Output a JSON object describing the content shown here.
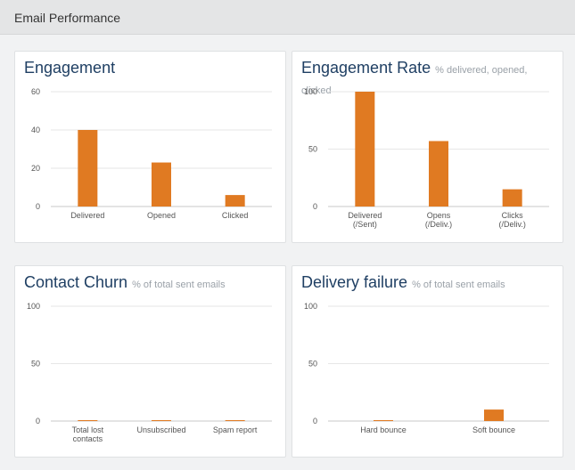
{
  "header": {
    "title": "Email Performance"
  },
  "colors": {
    "bar": "#e07a22",
    "grid": "#e6e6e6",
    "axis": "#c8c8c8",
    "text": "#555555",
    "title": "#1f3f63",
    "subtitle": "#9aa1a8"
  },
  "chart_data": [
    {
      "type": "bar",
      "title": "Engagement",
      "subtitle": "",
      "categories": [
        [
          "Delivered"
        ],
        [
          "Opened"
        ],
        [
          "Clicked"
        ]
      ],
      "values": [
        40,
        23,
        6
      ],
      "ylim": [
        0,
        60
      ],
      "yticks": [
        0,
        20,
        40,
        60
      ],
      "xlabel": "",
      "ylabel": "",
      "grid": true
    },
    {
      "type": "bar",
      "title": "Engagement Rate",
      "subtitle": "% delivered, opened, clicked",
      "categories": [
        [
          "Delivered",
          "(/Sent)"
        ],
        [
          "Opens",
          "(/Deliv.)"
        ],
        [
          "Clicks",
          "(/Deliv.)"
        ]
      ],
      "values": [
        100,
        57,
        15
      ],
      "ylim": [
        0,
        100
      ],
      "yticks": [
        0,
        50,
        100
      ],
      "xlabel": "",
      "ylabel": "",
      "grid": true
    },
    {
      "type": "bar",
      "title": "Contact Churn",
      "subtitle": "% of total sent emails",
      "categories": [
        [
          "Total lost",
          "contacts"
        ],
        [
          "Unsubscribed"
        ],
        [
          "Spam report"
        ]
      ],
      "values": [
        0.5,
        0.5,
        0.5
      ],
      "ylim": [
        0,
        100
      ],
      "yticks": [
        0,
        50,
        100
      ],
      "xlabel": "",
      "ylabel": "",
      "grid": true
    },
    {
      "type": "bar",
      "title": "Delivery failure",
      "subtitle": "% of total sent emails",
      "categories": [
        [
          "Hard bounce"
        ],
        [
          "Soft bounce"
        ]
      ],
      "values": [
        0.5,
        10
      ],
      "ylim": [
        0,
        100
      ],
      "yticks": [
        0,
        50,
        100
      ],
      "xlabel": "",
      "ylabel": "",
      "grid": true
    }
  ]
}
